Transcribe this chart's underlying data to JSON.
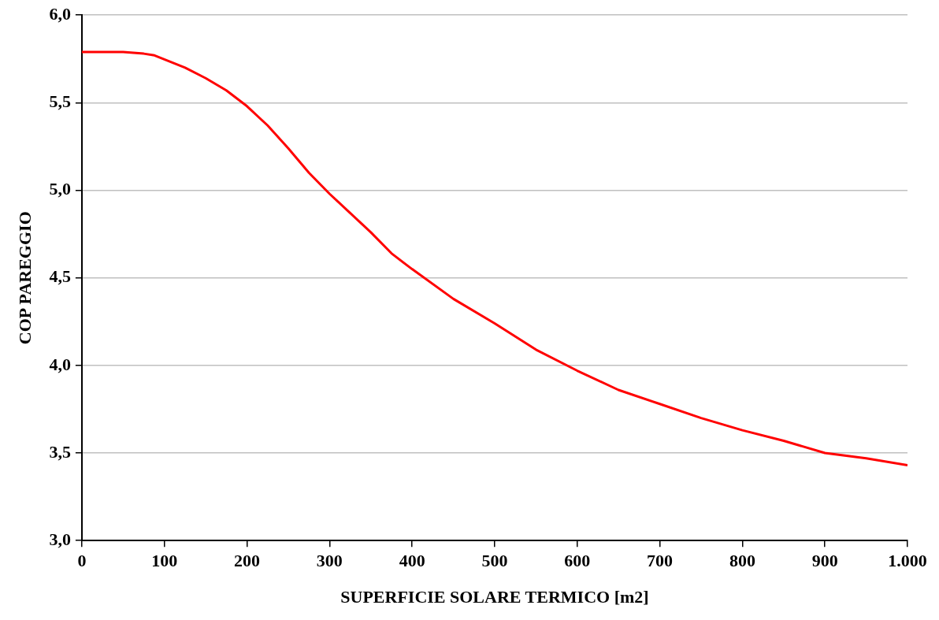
{
  "chart_data": {
    "type": "line",
    "xlabel": "SUPERFICIE SOLARE TERMICO [m2]",
    "ylabel": "COP PAREGGIO",
    "x": [
      0,
      50,
      75,
      88,
      125,
      150,
      175,
      200,
      225,
      250,
      275,
      300,
      350,
      375,
      400,
      450,
      500,
      550,
      600,
      650,
      700,
      750,
      800,
      850,
      900,
      950,
      1000
    ],
    "series": [
      {
        "color": "#ff0000",
        "values": [
          5.79,
          5.79,
          5.78,
          5.77,
          5.7,
          5.64,
          5.57,
          5.48,
          5.37,
          5.24,
          5.1,
          4.98,
          4.76,
          4.64,
          4.55,
          4.38,
          4.24,
          4.09,
          3.97,
          3.86,
          3.78,
          3.7,
          3.63,
          3.57,
          3.5,
          3.47,
          3.43
        ]
      }
    ],
    "xlim": [
      0,
      1000
    ],
    "xticks": [
      0,
      100,
      200,
      300,
      400,
      500,
      600,
      700,
      800,
      900,
      {
        "value": 1000,
        "label": "1.000"
      }
    ],
    "ylim": [
      3,
      6
    ],
    "yticks": [
      {
        "value": 3,
        "label": "3,0"
      },
      {
        "value": 3.5,
        "label": "3,5"
      },
      {
        "value": 4,
        "label": "4,0"
      },
      {
        "value": 4.5,
        "label": "4,5"
      },
      {
        "value": 5,
        "label": "5,0"
      },
      {
        "value": 5.5,
        "label": "5,5"
      },
      {
        "value": 6,
        "label": "6,0"
      }
    ],
    "grid": "y",
    "marker": "none",
    "line_style": "solid",
    "legend": false
  }
}
